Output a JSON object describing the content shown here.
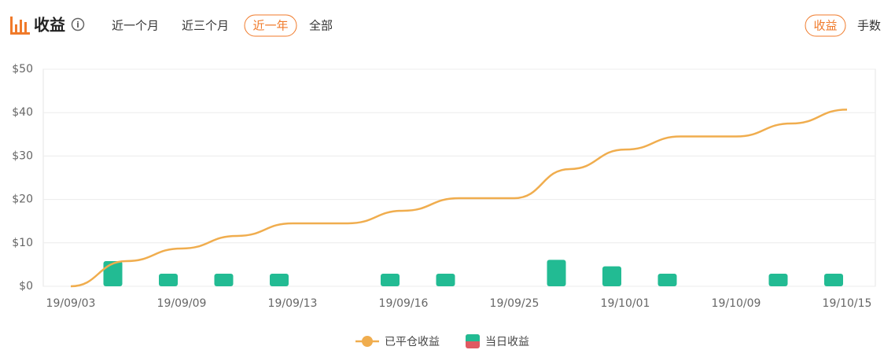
{
  "header": {
    "title": "收益",
    "tabs": [
      "近一个月",
      "近三个月",
      "近一年",
      "全部"
    ],
    "metric_toggle": [
      "收益",
      "手数"
    ]
  },
  "chart_data": {
    "type": "combo",
    "categories": [
      "19/09/03",
      null,
      "19/09/09",
      null,
      "19/09/13",
      null,
      "19/09/16",
      null,
      "19/09/25",
      null,
      "19/10/01",
      null,
      "19/10/09",
      null,
      "19/10/15"
    ],
    "series": [
      {
        "name": "已平仓收益",
        "type": "line",
        "color": "#f0ad4e",
        "values": [
          0,
          5.8,
          8.7,
          11.6,
          14.5,
          14.5,
          17.4,
          20.3,
          20.3,
          27,
          31.5,
          34.5,
          34.5,
          37.5,
          40.7
        ]
      },
      {
        "name": "当日收益",
        "type": "bar",
        "color": "#22bb93",
        "negative_color": "#e05a62",
        "values": [
          null,
          5.8,
          2.9,
          2.9,
          2.9,
          null,
          2.9,
          2.9,
          null,
          6.1,
          4.6,
          2.9,
          null,
          2.9,
          2.9
        ]
      }
    ],
    "ylim": [
      0,
      50
    ],
    "yticks": [
      {
        "value": 0,
        "label": "$0"
      },
      {
        "value": 10,
        "label": "$10"
      },
      {
        "value": 20,
        "label": "$20"
      },
      {
        "value": 30,
        "label": "$30"
      },
      {
        "value": 40,
        "label": "$40"
      },
      {
        "value": 50,
        "label": "$50"
      }
    ],
    "grid": true
  }
}
